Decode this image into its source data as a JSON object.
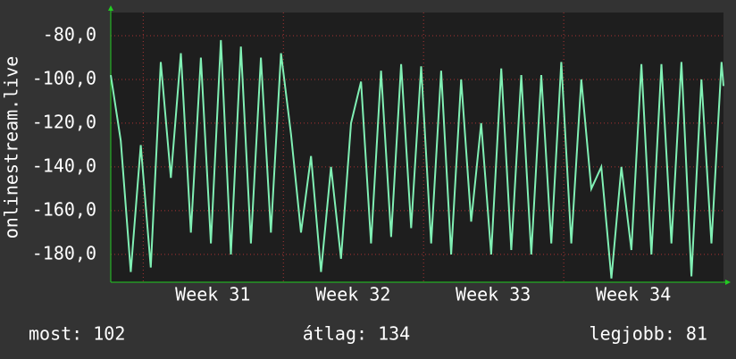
{
  "chart_data": {
    "type": "line",
    "y_label": "onlinestream.live",
    "x": [
      0,
      0.5,
      1,
      1.5,
      2,
      2.5,
      3,
      3.5,
      4,
      4.5,
      5,
      5.5,
      6,
      6.5,
      7,
      7.5,
      8,
      8.5,
      9,
      9.5,
      10,
      10.5,
      11,
      11.5,
      12,
      12.5,
      13,
      13.5,
      14,
      14.5,
      15,
      15.5,
      16,
      16.5,
      17,
      17.5,
      18,
      18.5,
      19,
      19.5,
      20,
      20.5,
      21,
      21.5,
      22,
      22.5,
      23,
      23.5,
      24,
      24.5,
      25,
      25.5,
      26,
      26.5,
      27,
      27.5,
      28,
      28.5,
      29,
      29.5,
      30,
      30.5,
      30.6
    ],
    "series": [
      {
        "name": "onlinestream.live",
        "color": "#80f0b4",
        "values": [
          -98,
          -128,
          -188,
          -130,
          -186,
          -92,
          -145,
          -88,
          -170,
          -90,
          -175,
          -82,
          -180,
          -85,
          -175,
          -90,
          -170,
          -88,
          -125,
          -170,
          -135,
          -188,
          -140,
          -182,
          -120,
          -101,
          -175,
          -96,
          -172,
          -93,
          -168,
          -94,
          -175,
          -96,
          -180,
          -100,
          -165,
          -120,
          -180,
          -95,
          -178,
          -98,
          -180,
          -98,
          -175,
          -92,
          -175,
          -100,
          -150,
          -140,
          -191,
          -140,
          -178,
          -93,
          -180,
          -93,
          -175,
          -92,
          -190,
          -100,
          -175,
          -92,
          -103
        ]
      }
    ],
    "xlim": [
      0,
      30.6
    ],
    "xticks": [
      {
        "value": 5.1,
        "label": "Week 31"
      },
      {
        "value": 12.1,
        "label": "Week 32"
      },
      {
        "value": 19.1,
        "label": "Week 33"
      },
      {
        "value": 26.1,
        "label": "Week 34"
      }
    ],
    "ylim": [
      -192.7,
      -69.4
    ],
    "yticks": [
      {
        "value": -80,
        "label": "-80,0"
      },
      {
        "value": -100,
        "label": "-100,0"
      },
      {
        "value": -120,
        "label": "-120,0"
      },
      {
        "value": -140,
        "label": "-140,0"
      },
      {
        "value": -160,
        "label": "-160,0"
      },
      {
        "value": -180,
        "label": "-180,0"
      }
    ],
    "grid": true,
    "stats": [
      {
        "label": "most: 102"
      },
      {
        "label": "átlag: 134"
      },
      {
        "label": "legjobb: 81"
      }
    ]
  }
}
